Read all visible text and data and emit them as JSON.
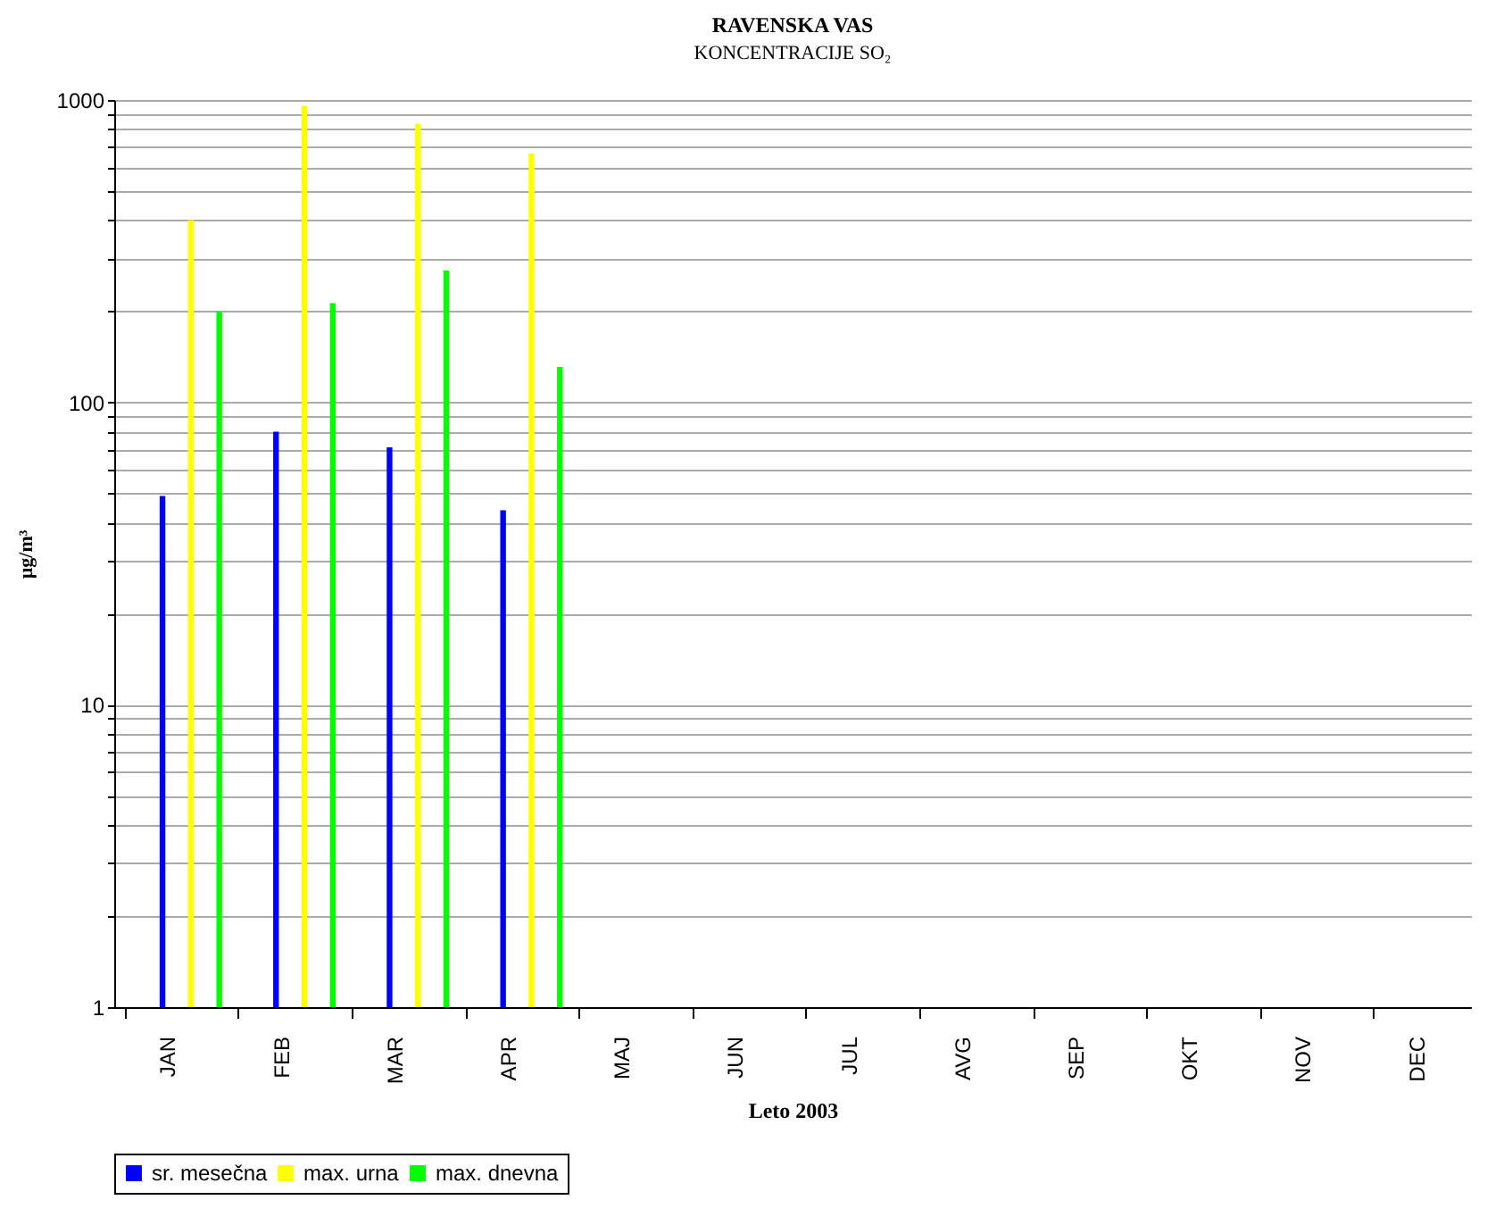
{
  "chart_data": {
    "type": "bar",
    "title": "RAVENSKA VAS",
    "subtitle": "KONCENTRACIJE SO₂",
    "xlabel": "Leto 2003",
    "ylabel": "µg/m³",
    "categories": [
      "JAN",
      "FEB",
      "MAR",
      "APR",
      "MAJ",
      "JUN",
      "JUL",
      "AVG",
      "SEP",
      "OKT",
      "NOV",
      "DEC"
    ],
    "series": [
      {
        "name": "sr. mesečna",
        "color": "#0000ff",
        "values": [
          49,
          80,
          71,
          44,
          null,
          null,
          null,
          null,
          null,
          null,
          null,
          null
        ]
      },
      {
        "name": "max. urna",
        "color": "#ffff00",
        "values": [
          400,
          955,
          833,
          665,
          null,
          null,
          null,
          null,
          null,
          null,
          null,
          null
        ]
      },
      {
        "name": "max. dnevna",
        "color": "#00ff00",
        "values": [
          200,
          213,
          273,
          131,
          null,
          null,
          null,
          null,
          null,
          null,
          null,
          null
        ]
      }
    ],
    "log": "y",
    "ylim": [
      1,
      1000
    ],
    "yticks": [
      1,
      {
        "value": 2,
        "label": null
      },
      {
        "value": 3,
        "label": null
      },
      {
        "value": 4,
        "label": null
      },
      {
        "value": 5,
        "label": null
      },
      {
        "value": 6,
        "label": null
      },
      {
        "value": 7,
        "label": null
      },
      {
        "value": 8,
        "label": null
      },
      {
        "value": 9,
        "label": null
      },
      10,
      {
        "value": 20,
        "label": null
      },
      {
        "value": 30,
        "label": null
      },
      {
        "value": 40,
        "label": null
      },
      {
        "value": 50,
        "label": null
      },
      {
        "value": 60,
        "label": null
      },
      {
        "value": 70,
        "label": null
      },
      {
        "value": 80,
        "label": null
      },
      {
        "value": 90,
        "label": null
      },
      100,
      {
        "value": 200,
        "label": null
      },
      {
        "value": 300,
        "label": null
      },
      {
        "value": 400,
        "label": null
      },
      {
        "value": 500,
        "label": null
      },
      {
        "value": 600,
        "label": null
      },
      {
        "value": 700,
        "label": null
      },
      {
        "value": 800,
        "label": null
      },
      {
        "value": 900,
        "label": null
      },
      1000
    ],
    "grid": "y",
    "legend": "bottom"
  }
}
